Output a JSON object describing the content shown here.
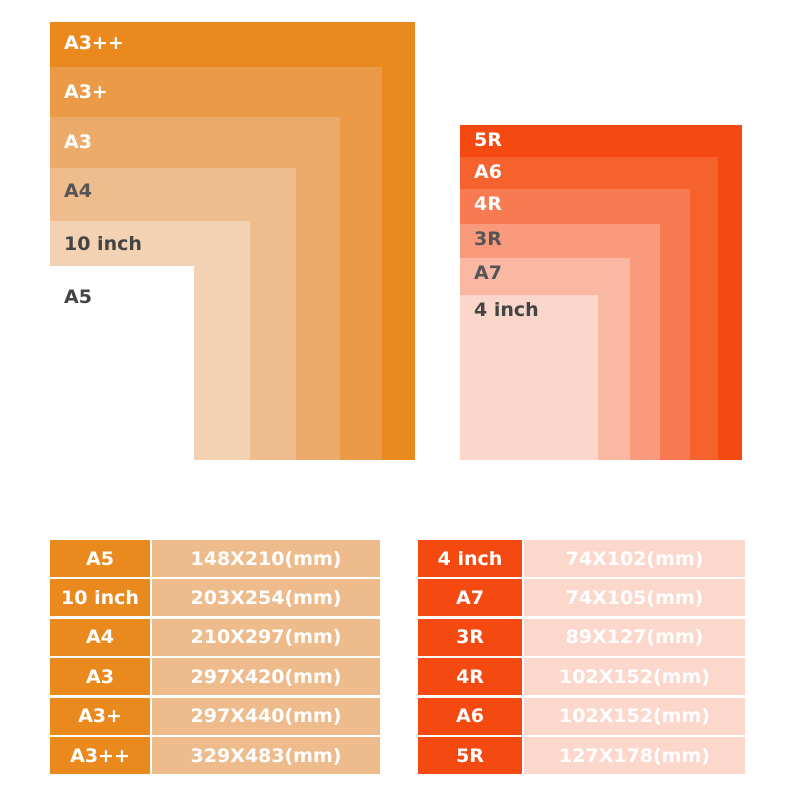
{
  "left_diagram": {
    "labels": [
      "A3++",
      "A3+",
      "A3",
      "A4",
      "10 inch",
      "A5"
    ]
  },
  "right_diagram": {
    "labels": [
      "5R",
      "A6",
      "4R",
      "3R",
      "A7",
      "4 inch"
    ]
  },
  "left_table": {
    "rows": [
      [
        "A5",
        "148X210(mm)"
      ],
      [
        "10 inch",
        "203X254(mm)"
      ],
      [
        "A4",
        "210X297(mm)"
      ],
      [
        "A3",
        "297X420(mm)"
      ],
      [
        "A3+",
        "297X440(mm)"
      ],
      [
        "A3++",
        "329X483(mm)"
      ]
    ]
  },
  "right_table": {
    "rows": [
      [
        "4 inch",
        "74X102(mm)"
      ],
      [
        "A7",
        "74X105(mm)"
      ],
      [
        "3R",
        "89X127(mm)"
      ],
      [
        "4R",
        "102X152(mm)"
      ],
      [
        "A6",
        "102X152(mm)"
      ],
      [
        "5R",
        "127X178(mm)"
      ]
    ]
  }
}
